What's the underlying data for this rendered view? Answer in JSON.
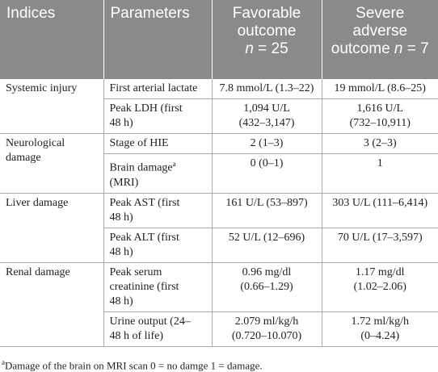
{
  "header": [
    "Indices",
    "Parameters",
    [
      "Favorable",
      "outcome",
      "n",
      "= 25"
    ],
    [
      "Severe",
      "adverse",
      "outcome",
      "n",
      "= 7"
    ]
  ],
  "rows": [
    {
      "index": [
        "Systemic injury"
      ],
      "params": [
        {
          "parameter": [
            "First arterial lactate"
          ],
          "favorable": [
            "7.8 mmol/L (1.3–22)"
          ],
          "severe": [
            "19 mmol/L (8.6–25)"
          ]
        },
        {
          "parameter": [
            "Peak LDH (first",
            "48 h)"
          ],
          "favorable": [
            "1,094 U/L",
            "(432–3,147)"
          ],
          "severe": [
            "1,616 U/L",
            "(732–10,911)"
          ]
        }
      ]
    },
    {
      "index": [
        "Neurological",
        "damage"
      ],
      "params": [
        {
          "parameter": [
            "Stage of HIE"
          ],
          "favorable": [
            "2 (1–3)"
          ],
          "severe": [
            "3 (2–3)"
          ]
        },
        {
          "parameter": [
            "Brain damage",
            "(MRI)"
          ],
          "sup": "a",
          "favorable": [
            "0 (0–1)"
          ],
          "severe": [
            "1"
          ]
        }
      ]
    },
    {
      "index": [
        "Liver damage"
      ],
      "params": [
        {
          "parameter": [
            "Peak AST (first",
            "48 h)"
          ],
          "favorable": [
            "161 U/L (53–897)"
          ],
          "severe": [
            "303 U/L (111–6,414)"
          ]
        },
        {
          "parameter": [
            "Peak ALT (first",
            "48 h)"
          ],
          "favorable": [
            "52 U/L (12–696)"
          ],
          "severe": [
            "70 U/L (17–3,597)"
          ]
        }
      ]
    },
    {
      "index": [
        "Renal damage"
      ],
      "params": [
        {
          "parameter": [
            "Peak serum",
            "creatinine (first",
            "48 h)"
          ],
          "favorable": [
            "0.96 mg/dl",
            "(0.66–1.29)"
          ],
          "severe": [
            "1.17 mg/dl",
            "(1.02–2.06)"
          ]
        },
        {
          "parameter": [
            "Urine output (24–",
            "48 h of life)"
          ],
          "favorable": [
            "2.079 ml/kg/h",
            "(0.720–10.070)"
          ],
          "severe": [
            "1.72 ml/kg/h",
            "(0–4.24)"
          ]
        }
      ]
    }
  ],
  "footnote": {
    "sup": "a",
    "text": "Damage of the brain on MRI scan 0 = no damge 1 = damage."
  }
}
